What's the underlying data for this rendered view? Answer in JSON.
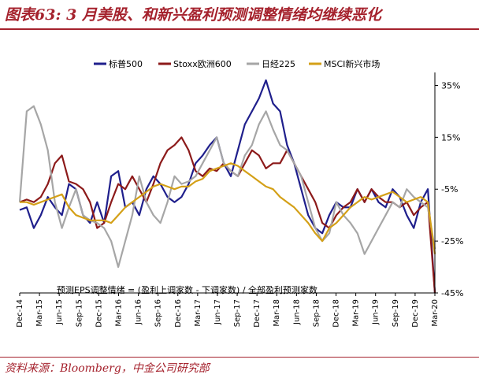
{
  "title": "图表63: 3 月美股、和新兴盈利预测调整情绪均继续恶化",
  "source": "资料来源：Bloomberg，中金公司研究部",
  "chart_data": {
    "type": "line",
    "note": "预测EPS调整情绪 = (盈利上调家数 - 下调家数) / 全部盈利预测家数",
    "x_ticks": [
      "Dec-14",
      "Mar-15",
      "Jun-15",
      "Sep-15",
      "Dec-15",
      "Mar-16",
      "Jun-16",
      "Sep-16",
      "Dec-16",
      "Mar-17",
      "Jun-17",
      "Sep-17",
      "Dec-17",
      "Mar-18",
      "Jun-18",
      "Sep-18",
      "Dec-18",
      "Mar-19",
      "Jun-19",
      "Sep-19",
      "Dec-19",
      "Mar-20"
    ],
    "y_ticks": [
      "35%",
      "15%",
      "-5%",
      "-25%",
      "-45%"
    ],
    "y_tick_values": [
      35,
      15,
      -5,
      -25,
      -45
    ],
    "ylim": [
      -45,
      40
    ],
    "y_axis_side": "right",
    "legend_position": "top",
    "series": [
      {
        "name": "标普500",
        "color": "#1f1f8c",
        "values": [
          -13,
          -12,
          -20,
          -15,
          -8,
          -12,
          -15,
          -3,
          -5,
          -15,
          -18,
          -10,
          -18,
          0,
          2,
          -12,
          -10,
          -15,
          -5,
          0,
          -3,
          -8,
          -10,
          -8,
          -3,
          5,
          8,
          12,
          15,
          5,
          0,
          10,
          20,
          25,
          30,
          37,
          28,
          25,
          12,
          5,
          -5,
          -15,
          -20,
          -22,
          -15,
          -10,
          -12,
          -12,
          -5,
          -10,
          -5,
          -10,
          -12,
          -5,
          -8,
          -15,
          -20,
          -10,
          -5,
          -45
        ]
      },
      {
        "name": "Stoxx欧洲600",
        "color": "#8c1a1a",
        "values": [
          -10,
          -9,
          -10,
          -8,
          -3,
          5,
          8,
          -2,
          -3,
          -5,
          -10,
          -20,
          -18,
          -10,
          -3,
          -5,
          0,
          -5,
          -10,
          -3,
          5,
          10,
          12,
          15,
          10,
          2,
          0,
          3,
          2,
          5,
          2,
          0,
          5,
          10,
          8,
          3,
          5,
          5,
          10,
          5,
          0,
          -5,
          -10,
          -18,
          -20,
          -15,
          -12,
          -10,
          -5,
          -10,
          -5,
          -8,
          -10,
          -10,
          -12,
          -10,
          -15,
          -12,
          -10,
          -45
        ]
      },
      {
        "name": "日经225",
        "color": "#a6a6a6",
        "values": [
          -10,
          25,
          27,
          20,
          10,
          -10,
          -20,
          -12,
          -5,
          -15,
          -17,
          -18,
          -20,
          -25,
          -35,
          -25,
          -15,
          0,
          -10,
          -15,
          -18,
          -10,
          0,
          -3,
          -2,
          0,
          5,
          10,
          15,
          5,
          2,
          0,
          8,
          12,
          20,
          25,
          18,
          12,
          10,
          5,
          0,
          -10,
          -20,
          -25,
          -22,
          -10,
          -15,
          -18,
          -22,
          -30,
          -25,
          -20,
          -15,
          -10,
          -12,
          -5,
          -8,
          -10,
          -12,
          -28
        ]
      },
      {
        "name": "MSCI新兴市场",
        "color": "#d4a017",
        "values": [
          -10,
          -10,
          -11,
          -10,
          -9,
          -8,
          -7,
          -12,
          -15,
          -16,
          -17,
          -17,
          -17,
          -18,
          -15,
          -12,
          -10,
          -8,
          -6,
          -4,
          -3,
          -4,
          -5,
          -4,
          -4,
          -2,
          -1,
          2,
          3,
          4,
          5,
          4,
          2,
          0,
          -2,
          -4,
          -5,
          -8,
          -10,
          -12,
          -15,
          -18,
          -22,
          -25,
          -20,
          -18,
          -15,
          -12,
          -10,
          -8,
          -9,
          -8,
          -7,
          -6,
          -8,
          -10,
          -9,
          -8,
          -10,
          -30
        ]
      }
    ]
  }
}
